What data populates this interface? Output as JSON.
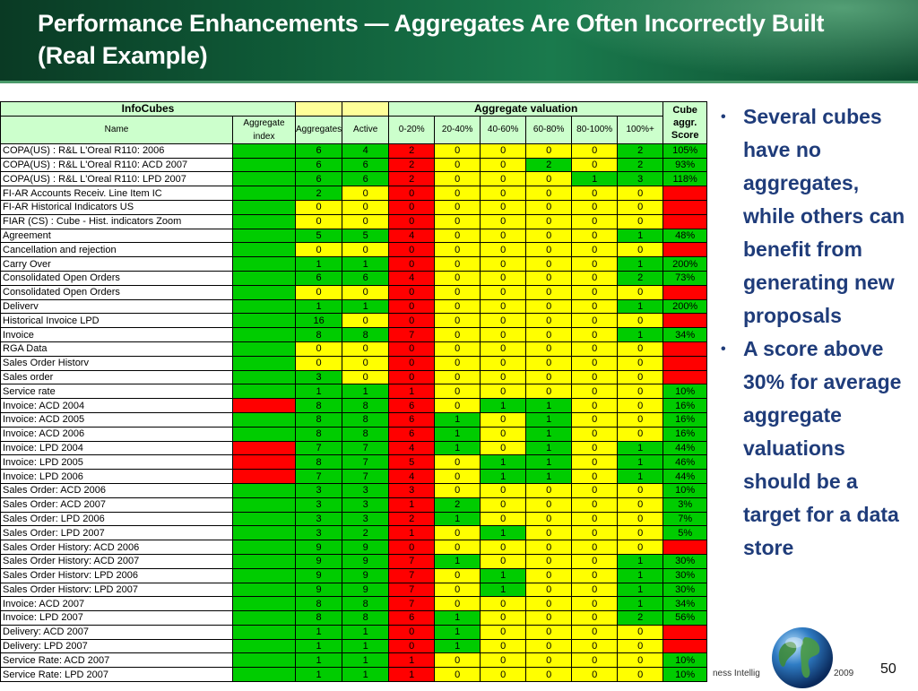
{
  "slide": {
    "title_line1": "Performance Enhancements — Aggregates Are Often Incorrectly Built",
    "title_line2": "(Real Example)",
    "page_number": "50",
    "footer_left": "ness Intellig",
    "footer_right": "2009"
  },
  "table": {
    "group_headers": {
      "infocubes": "InfoCubes",
      "aggregate_valuation": "Aggregate valuation",
      "cube_score": "Cube aggr. Score"
    },
    "col_headers": [
      "Name",
      "Aggregate index",
      "Aggregates",
      "Active",
      "0-20%",
      "20-40%",
      "40-60%",
      "60-80%",
      "80-100%",
      "100%+"
    ],
    "rows": [
      {
        "name": "COPA(US) : R&L L'Oreal R110: 2006",
        "idx": "g",
        "agg": "6",
        "active": "4",
        "v": [
          "2",
          "0",
          "0",
          "0",
          "0",
          "2"
        ],
        "score": "105%"
      },
      {
        "name": "COPA(US) : R&L L'Oreal R110: ACD 2007",
        "idx": "g",
        "agg": "6",
        "active": "6",
        "v": [
          "2",
          "0",
          "0",
          "2",
          "0",
          "2"
        ],
        "score": "93%"
      },
      {
        "name": "COPA(US) : R&L L'Oreal R110: LPD 2007",
        "idx": "g",
        "agg": "6",
        "active": "6",
        "v": [
          "2",
          "0",
          "0",
          "0",
          "1",
          "3"
        ],
        "score": "118%"
      },
      {
        "name": "FI-AR Accounts Receiv. Line Item IC",
        "idx": "g",
        "agg": "2",
        "active": "0",
        "v": [
          "0",
          "0",
          "0",
          "0",
          "0",
          "0"
        ],
        "score": ""
      },
      {
        "name": "FI-AR Historical Indicators US",
        "idx": "g",
        "agg": "0",
        "active": "0",
        "v": [
          "0",
          "0",
          "0",
          "0",
          "0",
          "0"
        ],
        "score": ""
      },
      {
        "name": "FIAR (CS) : Cube - Hist. indicators Zoom",
        "idx": "g",
        "agg": "0",
        "active": "0",
        "v": [
          "0",
          "0",
          "0",
          "0",
          "0",
          "0"
        ],
        "score": ""
      },
      {
        "name": "Agreement",
        "idx": "g",
        "agg": "5",
        "active": "5",
        "v": [
          "4",
          "0",
          "0",
          "0",
          "0",
          "1"
        ],
        "score": "48%"
      },
      {
        "name": "Cancellation and rejection",
        "idx": "g",
        "agg": "0",
        "active": "0",
        "v": [
          "0",
          "0",
          "0",
          "0",
          "0",
          "0"
        ],
        "score": ""
      },
      {
        "name": "Carry Over",
        "idx": "g",
        "agg": "1",
        "active": "1",
        "v": [
          "0",
          "0",
          "0",
          "0",
          "0",
          "1"
        ],
        "score": "200%"
      },
      {
        "name": "Consolidated Open Orders",
        "idx": "g",
        "agg": "6",
        "active": "6",
        "v": [
          "4",
          "0",
          "0",
          "0",
          "0",
          "2"
        ],
        "score": "73%"
      },
      {
        "name": "Consolidated Open Orders",
        "idx": "g",
        "agg": "0",
        "active": "0",
        "v": [
          "0",
          "0",
          "0",
          "0",
          "0",
          "0"
        ],
        "score": ""
      },
      {
        "name": "Deliverv",
        "idx": "g",
        "agg": "1",
        "active": "1",
        "v": [
          "0",
          "0",
          "0",
          "0",
          "0",
          "1"
        ],
        "score": "200%"
      },
      {
        "name": "Historical Invoice LPD",
        "idx": "g",
        "agg": "16",
        "active": "0",
        "v": [
          "0",
          "0",
          "0",
          "0",
          "0",
          "0"
        ],
        "score": ""
      },
      {
        "name": "Invoice",
        "idx": "g",
        "agg": "8",
        "active": "8",
        "v": [
          "7",
          "0",
          "0",
          "0",
          "0",
          "1"
        ],
        "score": "34%"
      },
      {
        "name": "RGA Data",
        "idx": "g",
        "agg": "0",
        "active": "0",
        "v": [
          "0",
          "0",
          "0",
          "0",
          "0",
          "0"
        ],
        "score": ""
      },
      {
        "name": "Sales Order Historv",
        "idx": "g",
        "agg": "0",
        "active": "0",
        "v": [
          "0",
          "0",
          "0",
          "0",
          "0",
          "0"
        ],
        "score": ""
      },
      {
        "name": "Sales order",
        "idx": "g",
        "agg": "3",
        "active": "0",
        "v": [
          "0",
          "0",
          "0",
          "0",
          "0",
          "0"
        ],
        "score": ""
      },
      {
        "name": "Service rate",
        "idx": "g",
        "agg": "1",
        "active": "1",
        "v": [
          "1",
          "0",
          "0",
          "0",
          "0",
          "0"
        ],
        "score": "10%"
      },
      {
        "name": "Invoice: ACD 2004",
        "idx": "r",
        "agg": "8",
        "active": "8",
        "v": [
          "6",
          "0",
          "1",
          "1",
          "0",
          "0"
        ],
        "score": "16%"
      },
      {
        "name": "Invoice: ACD 2005",
        "idx": "g",
        "agg": "8",
        "active": "8",
        "v": [
          "6",
          "1",
          "0",
          "1",
          "0",
          "0"
        ],
        "score": "16%"
      },
      {
        "name": "Invoice: ACD 2006",
        "idx": "g",
        "agg": "8",
        "active": "8",
        "v": [
          "6",
          "1",
          "0",
          "1",
          "0",
          "0"
        ],
        "score": "16%"
      },
      {
        "name": "Invoice: LPD 2004",
        "idx": "r",
        "agg": "7",
        "active": "7",
        "v": [
          "4",
          "1",
          "0",
          "1",
          "0",
          "1"
        ],
        "score": "44%"
      },
      {
        "name": "Invoice: LPD 2005",
        "idx": "r",
        "agg": "8",
        "active": "7",
        "v": [
          "5",
          "0",
          "1",
          "1",
          "0",
          "1"
        ],
        "score": "46%"
      },
      {
        "name": "Invoice: LPD 2006",
        "idx": "r",
        "agg": "7",
        "active": "7",
        "v": [
          "4",
          "0",
          "1",
          "1",
          "0",
          "1"
        ],
        "score": "44%"
      },
      {
        "name": "Sales Order: ACD 2006",
        "idx": "g",
        "agg": "3",
        "active": "3",
        "v": [
          "3",
          "0",
          "0",
          "0",
          "0",
          "0"
        ],
        "score": "10%"
      },
      {
        "name": "Sales Order: ACD 2007",
        "idx": "g",
        "agg": "3",
        "active": "3",
        "v": [
          "1",
          "2",
          "0",
          "0",
          "0",
          "0"
        ],
        "score": "3%"
      },
      {
        "name": "Sales Order: LPD 2006",
        "idx": "g",
        "agg": "3",
        "active": "3",
        "v": [
          "2",
          "1",
          "0",
          "0",
          "0",
          "0"
        ],
        "score": "7%"
      },
      {
        "name": "Sales Order: LPD 2007",
        "idx": "g",
        "agg": "3",
        "active": "2",
        "v": [
          "1",
          "0",
          "1",
          "0",
          "0",
          "0"
        ],
        "score": "5%"
      },
      {
        "name": "Sales Order History: ACD 2006",
        "idx": "g",
        "agg": "9",
        "active": "9",
        "v": [
          "0",
          "0",
          "0",
          "0",
          "0",
          "0"
        ],
        "score": ""
      },
      {
        "name": "Sales Order History: ACD 2007",
        "idx": "g",
        "agg": "9",
        "active": "9",
        "v": [
          "7",
          "1",
          "0",
          "0",
          "0",
          "1"
        ],
        "score": "30%"
      },
      {
        "name": "Sales Order Historv: LPD 2006",
        "idx": "g",
        "agg": "9",
        "active": "9",
        "v": [
          "7",
          "0",
          "1",
          "0",
          "0",
          "1"
        ],
        "score": "30%"
      },
      {
        "name": "Sales Order Historv: LPD 2007",
        "idx": "g",
        "agg": "9",
        "active": "9",
        "v": [
          "7",
          "0",
          "1",
          "0",
          "0",
          "1"
        ],
        "score": "30%"
      },
      {
        "name": "Invoice: ACD 2007",
        "idx": "g",
        "agg": "8",
        "active": "8",
        "v": [
          "7",
          "0",
          "0",
          "0",
          "0",
          "1"
        ],
        "score": "34%"
      },
      {
        "name": "Invoice: LPD 2007",
        "idx": "g",
        "agg": "8",
        "active": "8",
        "v": [
          "6",
          "1",
          "0",
          "0",
          "0",
          "2"
        ],
        "score": "56%"
      },
      {
        "name": "Delivery: ACD 2007",
        "idx": "g",
        "agg": "1",
        "active": "1",
        "v": [
          "0",
          "1",
          "0",
          "0",
          "0",
          "0"
        ],
        "score": ""
      },
      {
        "name": "Delivery: LPD 2007",
        "idx": "g",
        "agg": "1",
        "active": "1",
        "v": [
          "0",
          "1",
          "0",
          "0",
          "0",
          "0"
        ],
        "score": ""
      },
      {
        "name": "Service Rate: ACD 2007",
        "idx": "g",
        "agg": "1",
        "active": "1",
        "v": [
          "1",
          "0",
          "0",
          "0",
          "0",
          "0"
        ],
        "score": "10%"
      },
      {
        "name": "Service Rate: LPD 2007",
        "idx": "g",
        "agg": "1",
        "active": "1",
        "v": [
          "1",
          "0",
          "0",
          "0",
          "0",
          "0"
        ],
        "score": "10%"
      }
    ]
  },
  "bullets": [
    "Several cubes have no aggregates, while others can benefit from generating new proposals",
    "A score above 30% for average aggregate valuations should be a target for a data store"
  ],
  "colors": {
    "green": "#00cc00",
    "yellow": "#ffff00",
    "red": "#ff0000",
    "bullet_text": "#1f3c7a",
    "header_bg": "#0f5a37"
  }
}
